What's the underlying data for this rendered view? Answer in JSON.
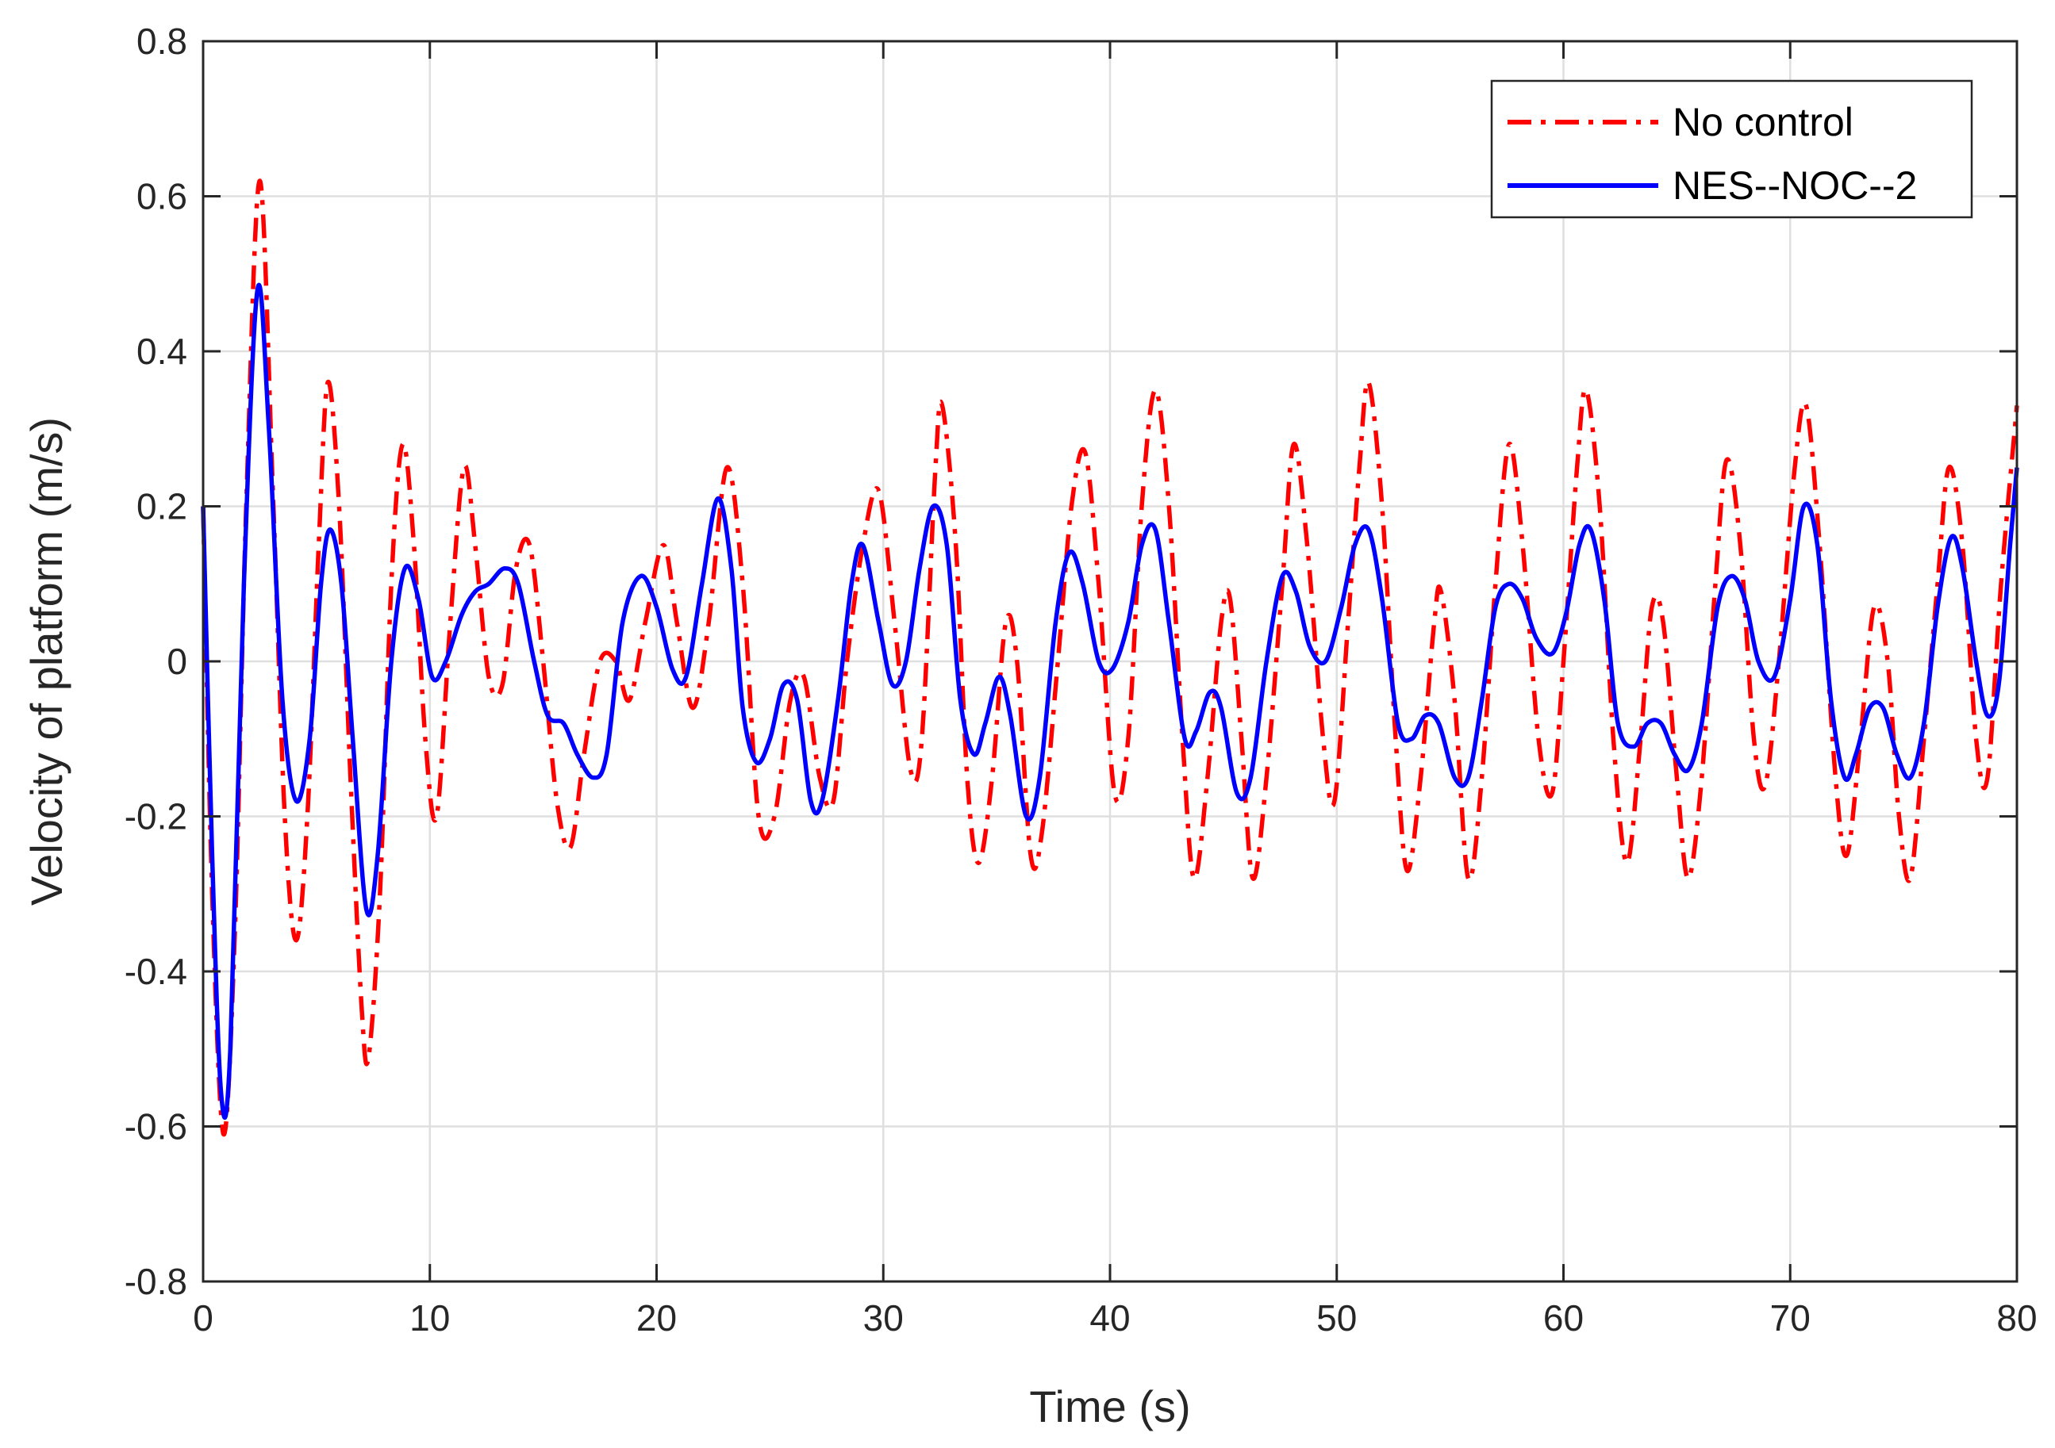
{
  "chart_data": {
    "type": "line",
    "title": "",
    "xlabel": "Time (s)",
    "ylabel": "Velocity of platform (m/s)",
    "xlim": [
      0,
      80
    ],
    "ylim": [
      -0.8,
      0.8
    ],
    "xticks": [
      0,
      10,
      20,
      30,
      40,
      50,
      60,
      70,
      80
    ],
    "xtick_labels": [
      "0",
      "10",
      "20",
      "30",
      "40",
      "50",
      "60",
      "70",
      "80"
    ],
    "yticks": [
      -0.8,
      -0.6,
      -0.4,
      -0.2,
      0,
      0.2,
      0.4,
      0.6,
      0.8
    ],
    "ytick_labels": [
      "-0.8",
      "-0.6",
      "-0.4",
      "-0.2",
      "0",
      "0.2",
      "0.4",
      "0.6",
      "0.8"
    ],
    "grid": true,
    "legend_position": "top-right",
    "series": [
      {
        "name": "No control",
        "color": "#ff0000",
        "style": "dash-dot",
        "points": [
          [
            0,
            0.2
          ],
          [
            0.4,
            -0.3
          ],
          [
            0.9,
            -0.61
          ],
          [
            1.4,
            -0.35
          ],
          [
            1.9,
            0.2
          ],
          [
            2.5,
            0.62
          ],
          [
            3.1,
            0.2
          ],
          [
            3.6,
            -0.2
          ],
          [
            4.1,
            -0.36
          ],
          [
            4.6,
            -0.2
          ],
          [
            5.1,
            0.15
          ],
          [
            5.5,
            0.36
          ],
          [
            6.0,
            0.2
          ],
          [
            6.5,
            -0.15
          ],
          [
            7.0,
            -0.45
          ],
          [
            7.3,
            -0.51
          ],
          [
            7.8,
            -0.3
          ],
          [
            8.3,
            0.1
          ],
          [
            8.8,
            0.28
          ],
          [
            9.3,
            0.15
          ],
          [
            9.8,
            -0.1
          ],
          [
            10.3,
            -0.2
          ],
          [
            10.9,
            0.05
          ],
          [
            11.5,
            0.25
          ],
          [
            12.0,
            0.15
          ],
          [
            12.6,
            -0.02
          ],
          [
            13.2,
            -0.03
          ],
          [
            13.8,
            0.12
          ],
          [
            14.4,
            0.15
          ],
          [
            15.0,
            0.0
          ],
          [
            15.6,
            -0.18
          ],
          [
            16.2,
            -0.24
          ],
          [
            16.8,
            -0.12
          ],
          [
            17.5,
            0.0
          ],
          [
            18.2,
            0.0
          ],
          [
            18.8,
            -0.05
          ],
          [
            19.5,
            0.05
          ],
          [
            20.3,
            0.15
          ],
          [
            20.9,
            0.05
          ],
          [
            21.6,
            -0.06
          ],
          [
            22.3,
            0.05
          ],
          [
            23.1,
            0.25
          ],
          [
            23.8,
            0.1
          ],
          [
            24.5,
            -0.2
          ],
          [
            25.2,
            -0.2
          ],
          [
            25.9,
            -0.05
          ],
          [
            26.5,
            -0.02
          ],
          [
            27.2,
            -0.15
          ],
          [
            27.8,
            -0.18
          ],
          [
            28.4,
            0.0
          ],
          [
            29.1,
            0.15
          ],
          [
            29.8,
            0.22
          ],
          [
            30.5,
            0.05
          ],
          [
            31.2,
            -0.14
          ],
          [
            31.7,
            -0.1
          ],
          [
            32.3,
            0.25
          ],
          [
            32.6,
            0.33
          ],
          [
            33.2,
            0.15
          ],
          [
            33.7,
            -0.15
          ],
          [
            34.2,
            -0.26
          ],
          [
            34.8,
            -0.15
          ],
          [
            35.4,
            0.05
          ],
          [
            35.9,
            0.0
          ],
          [
            36.5,
            -0.25
          ],
          [
            37.0,
            -0.22
          ],
          [
            37.7,
            0.0
          ],
          [
            38.3,
            0.2
          ],
          [
            38.9,
            0.27
          ],
          [
            39.5,
            0.1
          ],
          [
            40.2,
            -0.17
          ],
          [
            40.8,
            -0.1
          ],
          [
            41.4,
            0.2
          ],
          [
            42.0,
            0.35
          ],
          [
            42.6,
            0.2
          ],
          [
            43.2,
            -0.1
          ],
          [
            43.7,
            -0.28
          ],
          [
            44.3,
            -0.15
          ],
          [
            44.9,
            0.05
          ],
          [
            45.3,
            0.08
          ],
          [
            45.8,
            -0.1
          ],
          [
            46.3,
            -0.28
          ],
          [
            46.9,
            -0.15
          ],
          [
            47.6,
            0.1
          ],
          [
            48.1,
            0.28
          ],
          [
            48.7,
            0.15
          ],
          [
            49.4,
            -0.1
          ],
          [
            49.9,
            -0.18
          ],
          [
            50.5,
            0.05
          ],
          [
            51.0,
            0.25
          ],
          [
            51.4,
            0.36
          ],
          [
            52.0,
            0.2
          ],
          [
            52.6,
            -0.1
          ],
          [
            53.1,
            -0.27
          ],
          [
            53.7,
            -0.15
          ],
          [
            54.3,
            0.05
          ],
          [
            54.6,
            0.09
          ],
          [
            55.2,
            -0.05
          ],
          [
            55.8,
            -0.28
          ],
          [
            56.4,
            -0.15
          ],
          [
            57.0,
            0.1
          ],
          [
            57.6,
            0.28
          ],
          [
            58.2,
            0.15
          ],
          [
            58.9,
            -0.1
          ],
          [
            59.5,
            -0.17
          ],
          [
            60.0,
            0.0
          ],
          [
            60.6,
            0.25
          ],
          [
            61.0,
            0.35
          ],
          [
            61.6,
            0.2
          ],
          [
            62.2,
            -0.1
          ],
          [
            62.8,
            -0.26
          ],
          [
            63.4,
            -0.1
          ],
          [
            63.9,
            0.07
          ],
          [
            64.4,
            0.05
          ],
          [
            65.0,
            -0.15
          ],
          [
            65.5,
            -0.28
          ],
          [
            66.1,
            -0.15
          ],
          [
            66.7,
            0.1
          ],
          [
            67.2,
            0.26
          ],
          [
            67.8,
            0.15
          ],
          [
            68.4,
            -0.1
          ],
          [
            68.9,
            -0.16
          ],
          [
            69.5,
            0.0
          ],
          [
            70.2,
            0.25
          ],
          [
            70.7,
            0.33
          ],
          [
            71.3,
            0.15
          ],
          [
            72.0,
            -0.15
          ],
          [
            72.5,
            -0.25
          ],
          [
            73.1,
            -0.1
          ],
          [
            73.7,
            0.07
          ],
          [
            74.3,
            0.0
          ],
          [
            74.8,
            -0.2
          ],
          [
            75.3,
            -0.28
          ],
          [
            75.9,
            -0.1
          ],
          [
            76.5,
            0.1
          ],
          [
            77.0,
            0.25
          ],
          [
            77.6,
            0.15
          ],
          [
            78.2,
            -0.1
          ],
          [
            78.7,
            -0.15
          ],
          [
            79.3,
            0.1
          ],
          [
            80.0,
            0.33
          ]
        ]
      },
      {
        "name": "NES--NOC--2",
        "color": "#0000ff",
        "style": "solid",
        "points": [
          [
            0,
            0.2
          ],
          [
            0.4,
            -0.25
          ],
          [
            0.8,
            -0.56
          ],
          [
            1.2,
            -0.5
          ],
          [
            1.8,
            0.1
          ],
          [
            2.4,
            0.48
          ],
          [
            2.9,
            0.3
          ],
          [
            3.5,
            -0.05
          ],
          [
            4.1,
            -0.18
          ],
          [
            4.7,
            -0.1
          ],
          [
            5.2,
            0.1
          ],
          [
            5.6,
            0.17
          ],
          [
            6.1,
            0.1
          ],
          [
            6.6,
            -0.1
          ],
          [
            7.2,
            -0.32
          ],
          [
            7.7,
            -0.25
          ],
          [
            8.3,
            0.0
          ],
          [
            8.9,
            0.12
          ],
          [
            9.5,
            0.08
          ],
          [
            10.1,
            -0.02
          ],
          [
            10.7,
            0.0
          ],
          [
            11.4,
            0.06
          ],
          [
            12.0,
            0.09
          ],
          [
            12.6,
            0.1
          ],
          [
            13.3,
            0.12
          ],
          [
            13.9,
            0.1
          ],
          [
            14.6,
            0.0
          ],
          [
            15.2,
            -0.07
          ],
          [
            15.9,
            -0.08
          ],
          [
            16.5,
            -0.12
          ],
          [
            17.2,
            -0.15
          ],
          [
            17.8,
            -0.12
          ],
          [
            18.5,
            0.05
          ],
          [
            19.3,
            0.11
          ],
          [
            20.0,
            0.07
          ],
          [
            20.7,
            -0.01
          ],
          [
            21.3,
            -0.02
          ],
          [
            22.0,
            0.1
          ],
          [
            22.7,
            0.21
          ],
          [
            23.3,
            0.12
          ],
          [
            23.8,
            -0.06
          ],
          [
            24.4,
            -0.13
          ],
          [
            25.0,
            -0.1
          ],
          [
            25.6,
            -0.03
          ],
          [
            26.2,
            -0.05
          ],
          [
            26.8,
            -0.18
          ],
          [
            27.3,
            -0.18
          ],
          [
            28.0,
            -0.05
          ],
          [
            28.6,
            0.1
          ],
          [
            29.1,
            0.15
          ],
          [
            29.8,
            0.05
          ],
          [
            30.4,
            -0.03
          ],
          [
            31.0,
            0.0
          ],
          [
            31.6,
            0.12
          ],
          [
            32.2,
            0.2
          ],
          [
            32.8,
            0.15
          ],
          [
            33.4,
            -0.05
          ],
          [
            34.0,
            -0.12
          ],
          [
            34.5,
            -0.08
          ],
          [
            35.1,
            -0.02
          ],
          [
            35.6,
            -0.07
          ],
          [
            36.3,
            -0.2
          ],
          [
            36.9,
            -0.15
          ],
          [
            37.6,
            0.05
          ],
          [
            38.2,
            0.14
          ],
          [
            38.8,
            0.1
          ],
          [
            39.5,
            0.0
          ],
          [
            40.1,
            -0.01
          ],
          [
            40.8,
            0.05
          ],
          [
            41.4,
            0.15
          ],
          [
            42.0,
            0.17
          ],
          [
            42.6,
            0.05
          ],
          [
            43.3,
            -0.1
          ],
          [
            43.8,
            -0.09
          ],
          [
            44.4,
            -0.04
          ],
          [
            44.9,
            -0.06
          ],
          [
            45.6,
            -0.17
          ],
          [
            46.2,
            -0.15
          ],
          [
            46.9,
            0.0
          ],
          [
            47.6,
            0.11
          ],
          [
            48.2,
            0.09
          ],
          [
            48.8,
            0.02
          ],
          [
            49.5,
            0.0
          ],
          [
            50.2,
            0.07
          ],
          [
            50.8,
            0.15
          ],
          [
            51.4,
            0.17
          ],
          [
            52.0,
            0.08
          ],
          [
            52.7,
            -0.08
          ],
          [
            53.3,
            -0.1
          ],
          [
            53.9,
            -0.07
          ],
          [
            54.5,
            -0.08
          ],
          [
            55.2,
            -0.15
          ],
          [
            55.8,
            -0.15
          ],
          [
            56.4,
            -0.05
          ],
          [
            57.0,
            0.07
          ],
          [
            57.6,
            0.1
          ],
          [
            58.2,
            0.08
          ],
          [
            58.8,
            0.03
          ],
          [
            59.5,
            0.01
          ],
          [
            60.1,
            0.06
          ],
          [
            60.7,
            0.15
          ],
          [
            61.2,
            0.17
          ],
          [
            61.8,
            0.08
          ],
          [
            62.4,
            -0.08
          ],
          [
            63.1,
            -0.11
          ],
          [
            63.7,
            -0.08
          ],
          [
            64.3,
            -0.08
          ],
          [
            64.9,
            -0.12
          ],
          [
            65.5,
            -0.14
          ],
          [
            66.1,
            -0.08
          ],
          [
            66.8,
            0.07
          ],
          [
            67.4,
            0.11
          ],
          [
            68.0,
            0.08
          ],
          [
            68.6,
            0.0
          ],
          [
            69.3,
            -0.02
          ],
          [
            70.0,
            0.08
          ],
          [
            70.6,
            0.2
          ],
          [
            71.2,
            0.15
          ],
          [
            71.8,
            -0.05
          ],
          [
            72.4,
            -0.15
          ],
          [
            72.9,
            -0.12
          ],
          [
            73.5,
            -0.06
          ],
          [
            74.1,
            -0.06
          ],
          [
            74.7,
            -0.12
          ],
          [
            75.3,
            -0.15
          ],
          [
            75.9,
            -0.08
          ],
          [
            76.5,
            0.07
          ],
          [
            77.1,
            0.16
          ],
          [
            77.6,
            0.12
          ],
          [
            78.2,
            0.0
          ],
          [
            78.7,
            -0.07
          ],
          [
            79.2,
            -0.03
          ],
          [
            79.7,
            0.15
          ],
          [
            80.0,
            0.25
          ]
        ]
      }
    ]
  }
}
